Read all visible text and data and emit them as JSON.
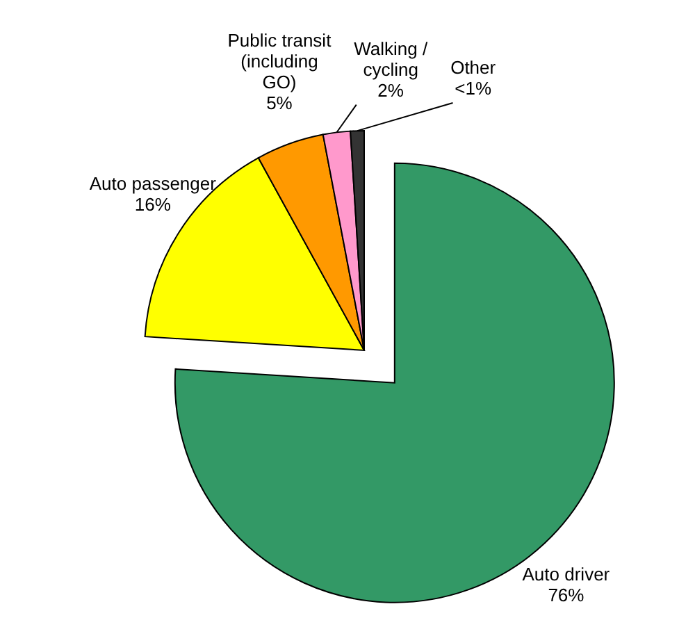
{
  "chart_data": {
    "type": "pie",
    "categories": [
      "Auto driver",
      "Auto passenger",
      "Public transit (including GO)",
      "Walking / cycling",
      "Other"
    ],
    "values": [
      76,
      16,
      5,
      2,
      1
    ],
    "value_labels": [
      "76%",
      "16%",
      "5%",
      "2%",
      "<1%"
    ],
    "colors": [
      "#339966",
      "#ffff00",
      "#ff9900",
      "#ff99cc",
      "#333333"
    ],
    "legend": false
  }
}
